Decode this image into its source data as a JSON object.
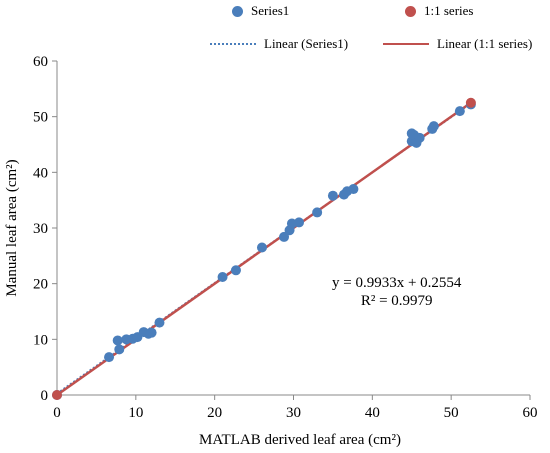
{
  "chart_data": {
    "type": "scatter",
    "title": "",
    "xlabel": "MATLAB derived leaf area (cm²)",
    "ylabel": "Manual leaf area (cm²)",
    "xlim": [
      0,
      60
    ],
    "ylim": [
      0,
      60
    ],
    "xticks": [
      0,
      10,
      20,
      30,
      40,
      50,
      60
    ],
    "yticks": [
      0,
      10,
      20,
      30,
      40,
      50,
      60
    ],
    "grid": false,
    "legend_position": "top",
    "series": [
      {
        "name": "Series1",
        "kind": "scatter",
        "color": "#4a7ebb",
        "points": [
          [
            0,
            0
          ],
          [
            6.6,
            6.8
          ],
          [
            7.7,
            9.8
          ],
          [
            7.9,
            8.2
          ],
          [
            8.8,
            10.0
          ],
          [
            9.6,
            10.1
          ],
          [
            10.2,
            10.4
          ],
          [
            11.0,
            11.3
          ],
          [
            11.6,
            11.0
          ],
          [
            12.0,
            11.2
          ],
          [
            13.0,
            13.0
          ],
          [
            21.0,
            21.2
          ],
          [
            22.7,
            22.4
          ],
          [
            26.0,
            26.5
          ],
          [
            28.8,
            28.4
          ],
          [
            29.5,
            29.6
          ],
          [
            29.8,
            30.8
          ],
          [
            30.7,
            31.0
          ],
          [
            33.0,
            32.8
          ],
          [
            35.0,
            35.8
          ],
          [
            36.4,
            36.0
          ],
          [
            36.8,
            36.6
          ],
          [
            37.6,
            37.0
          ],
          [
            45.0,
            45.6
          ],
          [
            45.0,
            47.0
          ],
          [
            45.3,
            46.7
          ],
          [
            45.6,
            45.3
          ],
          [
            46.0,
            46.2
          ],
          [
            47.6,
            47.8
          ],
          [
            47.8,
            48.3
          ],
          [
            51.1,
            51.0
          ],
          [
            52.5,
            52.2
          ]
        ]
      },
      {
        "name": "1:1 series",
        "kind": "scatter",
        "color": "#c0504d",
        "points": [
          [
            0,
            0
          ],
          [
            52.5,
            52.5
          ]
        ]
      },
      {
        "name": "Linear (Series1)",
        "kind": "trendline",
        "style": "dotted",
        "color": "#4a7ebb",
        "slope": 0.9933,
        "intercept": 0.2554,
        "x_range": [
          0,
          52.5
        ]
      },
      {
        "name": "Linear (1:1 series)",
        "kind": "trendline",
        "style": "solid",
        "color": "#c0504d",
        "slope": 1,
        "intercept": 0,
        "x_range": [
          0,
          52.5
        ]
      }
    ],
    "annotations": [
      "y = 0.9933x + 0.2554",
      "R² = 0.9979"
    ]
  }
}
